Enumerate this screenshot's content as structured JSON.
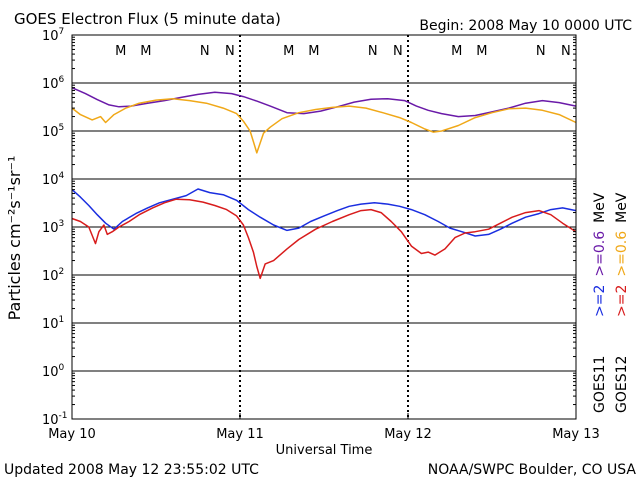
{
  "chart_data": {
    "type": "line",
    "title": "GOES Electron Flux (5 minute data)",
    "begin_label": "Begin: 2008 May 10 0000 UTC",
    "xlabel": "Universal Time",
    "ylabel": "Particles cm⁻²s⁻¹sr⁻¹",
    "y_scale": "log",
    "ylim": [
      0.1,
      10000000
    ],
    "y_ticks": [
      {
        "exp": -1,
        "label": "10",
        "sup": "-1"
      },
      {
        "exp": 0,
        "label": "10",
        "sup": "0"
      },
      {
        "exp": 1,
        "label": "10",
        "sup": "1"
      },
      {
        "exp": 2,
        "label": "10",
        "sup": "2"
      },
      {
        "exp": 3,
        "label": "10",
        "sup": "3"
      },
      {
        "exp": 4,
        "label": "10",
        "sup": "4"
      },
      {
        "exp": 5,
        "label": "10",
        "sup": "5"
      },
      {
        "exp": 6,
        "label": "10",
        "sup": "6"
      },
      {
        "exp": 7,
        "label": "10",
        "sup": "7"
      }
    ],
    "xlim_days": [
      0,
      3
    ],
    "x_ticks": [
      {
        "day": 0,
        "label": "May 10"
      },
      {
        "day": 1,
        "label": "May 11"
      },
      {
        "day": 2,
        "label": "May 12"
      },
      {
        "day": 3,
        "label": "May 13"
      }
    ],
    "reference_line": 1000,
    "grid": "horizontal at each decade",
    "footer_left": "Updated 2008 May 12 23:55:02 UTC",
    "footer_right": "NOAA/SWPC Boulder, CO USA",
    "satellites": {
      "goes11": "GOES11",
      "goes12": "GOES12"
    },
    "legend": {
      "goes11": [
        {
          "text": ">=2",
          "color": "#1a2ee0"
        },
        {
          "text": ">=0.6",
          "color": "#6a1aa8"
        },
        {
          "text": "MeV",
          "color": "#000000"
        }
      ],
      "goes12": [
        {
          "text": ">=2",
          "color": "#d81c1c"
        },
        {
          "text": ">=0.6",
          "color": "#f0a818"
        },
        {
          "text": "MeV",
          "color": "#000000"
        }
      ]
    },
    "markers": [
      {
        "day": 0.29,
        "label": "M",
        "color": "#d81c1c"
      },
      {
        "day": 0.44,
        "label": "M",
        "color": "#1a2ee0"
      },
      {
        "day": 0.79,
        "label": "N",
        "color": "#d81c1c"
      },
      {
        "day": 0.94,
        "label": "N",
        "color": "#1a2ee0"
      },
      {
        "day": 1.29,
        "label": "M",
        "color": "#d81c1c"
      },
      {
        "day": 1.44,
        "label": "M",
        "color": "#1a2ee0"
      },
      {
        "day": 1.79,
        "label": "N",
        "color": "#d81c1c"
      },
      {
        "day": 1.94,
        "label": "N",
        "color": "#1a2ee0"
      },
      {
        "day": 2.29,
        "label": "M",
        "color": "#d81c1c"
      },
      {
        "day": 2.44,
        "label": "M",
        "color": "#1a2ee0"
      },
      {
        "day": 2.79,
        "label": "N",
        "color": "#d81c1c"
      },
      {
        "day": 2.94,
        "label": "N",
        "color": "#1a2ee0"
      }
    ],
    "series": [
      {
        "key": "g11_06",
        "color": "#6a1aa8",
        "x": [
          0.0,
          0.08,
          0.15,
          0.22,
          0.28,
          0.35,
          0.45,
          0.55,
          0.65,
          0.75,
          0.85,
          0.95,
          1.02,
          1.1,
          1.18,
          1.28,
          1.38,
          1.48,
          1.58,
          1.68,
          1.78,
          1.88,
          1.98,
          2.05,
          2.12,
          2.2,
          2.3,
          2.4,
          2.5,
          2.6,
          2.7,
          2.8,
          2.9,
          3.0
        ],
        "y": [
          800000,
          600000,
          450000,
          350000,
          320000,
          330000,
          380000,
          430000,
          500000,
          580000,
          640000,
          600000,
          520000,
          420000,
          330000,
          240000,
          230000,
          260000,
          320000,
          400000,
          460000,
          470000,
          430000,
          330000,
          270000,
          230000,
          200000,
          210000,
          250000,
          300000,
          380000,
          430000,
          390000,
          330000
        ]
      },
      {
        "key": "g12_06",
        "color": "#f0a818",
        "x": [
          0.0,
          0.05,
          0.12,
          0.17,
          0.2,
          0.25,
          0.32,
          0.4,
          0.5,
          0.6,
          0.7,
          0.8,
          0.9,
          0.98,
          1.02,
          1.06,
          1.08,
          1.1,
          1.14,
          1.18,
          1.25,
          1.35,
          1.45,
          1.55,
          1.65,
          1.75,
          1.85,
          1.95,
          2.02,
          2.1,
          2.15,
          2.2,
          2.3,
          2.4,
          2.5,
          2.6,
          2.7,
          2.8,
          2.9,
          3.0
        ],
        "y": [
          300000,
          220000,
          170000,
          200000,
          150000,
          220000,
          300000,
          380000,
          440000,
          470000,
          430000,
          380000,
          300000,
          230000,
          160000,
          100000,
          60000,
          35000,
          90000,
          120000,
          180000,
          240000,
          280000,
          310000,
          330000,
          300000,
          240000,
          190000,
          150000,
          110000,
          95000,
          100000,
          130000,
          190000,
          240000,
          290000,
          300000,
          270000,
          220000,
          150000
        ]
      },
      {
        "key": "g11_2",
        "color": "#1a2ee0",
        "x": [
          0.0,
          0.05,
          0.1,
          0.15,
          0.2,
          0.25,
          0.3,
          0.38,
          0.45,
          0.52,
          0.6,
          0.68,
          0.75,
          0.82,
          0.9,
          0.98,
          1.05,
          1.12,
          1.2,
          1.28,
          1.35,
          1.42,
          1.5,
          1.58,
          1.65,
          1.72,
          1.8,
          1.88,
          1.95,
          2.02,
          2.1,
          2.18,
          2.25,
          2.32,
          2.4,
          2.48,
          2.55,
          2.62,
          2.7,
          2.78,
          2.85,
          2.92,
          3.0
        ],
        "y": [
          6000,
          4200,
          2800,
          1800,
          1200,
          900,
          1300,
          1900,
          2500,
          3200,
          3800,
          4500,
          6200,
          5200,
          4700,
          3600,
          2300,
          1600,
          1100,
          850,
          950,
          1300,
          1700,
          2200,
          2700,
          3000,
          3200,
          3000,
          2700,
          2300,
          1800,
          1300,
          950,
          800,
          650,
          700,
          900,
          1200,
          1600,
          1900,
          2300,
          2500,
          2200
        ]
      },
      {
        "key": "g12_2",
        "color": "#d81c1c",
        "x": [
          0.0,
          0.05,
          0.1,
          0.14,
          0.16,
          0.19,
          0.21,
          0.24,
          0.28,
          0.34,
          0.4,
          0.48,
          0.55,
          0.62,
          0.7,
          0.78,
          0.85,
          0.92,
          0.98,
          1.02,
          1.05,
          1.08,
          1.1,
          1.12,
          1.15,
          1.2,
          1.28,
          1.35,
          1.45,
          1.55,
          1.65,
          1.72,
          1.78,
          1.84,
          1.9,
          1.96,
          2.02,
          2.08,
          2.12,
          2.16,
          2.22,
          2.28,
          2.34,
          2.4,
          2.48,
          2.55,
          2.62,
          2.7,
          2.78,
          2.85,
          2.92,
          3.0
        ],
        "y": [
          1500,
          1300,
          1000,
          450,
          800,
          1100,
          700,
          800,
          1000,
          1300,
          1800,
          2500,
          3200,
          3800,
          3700,
          3300,
          2800,
          2300,
          1700,
          1100,
          600,
          300,
          150,
          85,
          170,
          200,
          350,
          550,
          900,
          1300,
          1800,
          2200,
          2300,
          2000,
          1300,
          800,
          400,
          280,
          300,
          260,
          350,
          600,
          750,
          800,
          900,
          1200,
          1600,
          2000,
          2200,
          1800,
          1200,
          800
        ]
      }
    ]
  }
}
